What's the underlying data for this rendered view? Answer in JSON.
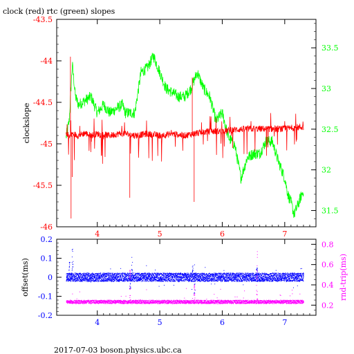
{
  "title": "clock (red) rtc (green) slopes",
  "footer": "2017-07-03 boson.physics.ubc.ca",
  "colors": {
    "clock": "#ff0000",
    "rtc": "#00ff00",
    "offset": "#0000ff",
    "rndtrip": "#ff00ff",
    "axis": "#000000"
  },
  "chart_data": [
    {
      "type": "line",
      "panel": "top",
      "ylabel": "clockslope",
      "xlim": [
        3.35,
        7.5
      ],
      "x_ticks": [
        "4",
        "5",
        "6",
        "7"
      ],
      "ylim_left": [
        -46.0,
        -43.5
      ],
      "y_ticks_left": [
        "-43.5",
        "-44",
        "-44.5",
        "-45",
        "-45.5",
        "-46"
      ],
      "ylim_right": [
        31.3,
        33.85
      ],
      "y_ticks_right": [
        "33.5",
        "33",
        "32.5",
        "32",
        "31.5"
      ],
      "grid": false,
      "series": [
        {
          "name": "clock",
          "axis": "left",
          "color": "#ff0000",
          "x": [
            3.5,
            3.55,
            3.6,
            3.7,
            3.8,
            3.9,
            4.0,
            4.2,
            4.4,
            4.6,
            4.8,
            5.0,
            5.2,
            5.4,
            5.6,
            5.8,
            6.0,
            6.2,
            6.4,
            6.6,
            6.8,
            7.0,
            7.2,
            7.3
          ],
          "y": [
            -44.9,
            -44.92,
            -44.88,
            -44.9,
            -44.87,
            -44.9,
            -44.88,
            -44.9,
            -44.87,
            -44.9,
            -44.88,
            -44.9,
            -44.88,
            -44.9,
            -44.87,
            -44.85,
            -44.85,
            -44.83,
            -44.82,
            -44.82,
            -44.82,
            -44.82,
            -44.8,
            -44.8
          ]
        },
        {
          "name": "rtc",
          "axis": "right",
          "color": "#00ff00",
          "x": [
            3.5,
            3.55,
            3.6,
            3.65,
            3.7,
            3.8,
            3.9,
            4.0,
            4.1,
            4.2,
            4.3,
            4.4,
            4.45,
            4.5,
            4.6,
            4.7,
            4.8,
            4.9,
            5.0,
            5.1,
            5.2,
            5.3,
            5.4,
            5.5,
            5.6,
            5.7,
            5.8,
            5.9,
            6.0,
            6.1,
            6.2,
            6.3,
            6.4,
            6.5,
            6.6,
            6.7,
            6.8,
            6.9,
            7.0,
            7.05,
            7.1,
            7.15,
            7.2,
            7.25,
            7.3
          ],
          "y": [
            32.4,
            32.6,
            33.3,
            32.9,
            32.8,
            32.85,
            32.9,
            32.7,
            32.8,
            32.7,
            32.75,
            32.8,
            32.7,
            32.7,
            32.7,
            33.2,
            33.25,
            33.4,
            33.2,
            33.0,
            32.95,
            32.9,
            32.9,
            33.0,
            33.2,
            33.0,
            32.9,
            32.6,
            32.7,
            32.4,
            32.3,
            31.9,
            32.15,
            32.2,
            32.2,
            32.35,
            32.35,
            32.1,
            31.9,
            31.7,
            31.6,
            31.45,
            31.55,
            31.65,
            31.75
          ]
        }
      ]
    },
    {
      "type": "scatter",
      "panel": "bottom",
      "ylabel": "offset(ms)",
      "ylabel_right": "rnd-trip(ms)",
      "xlim": [
        3.35,
        7.5
      ],
      "x_ticks": [
        "4",
        "5",
        "6",
        "7"
      ],
      "ylim_left": [
        -0.2,
        0.2
      ],
      "y_ticks_left": [
        "0.2",
        "0.1",
        "0",
        "-0.1",
        "-0.2"
      ],
      "ylim_right": [
        0.1,
        0.85
      ],
      "y_ticks_right": [
        "0.8",
        "0.6",
        "0.4",
        "0.2"
      ],
      "grid": false,
      "series": [
        {
          "name": "offset",
          "axis": "left",
          "color": "#0000ff",
          "x": [
            3.5,
            3.55,
            3.6,
            3.7,
            3.9,
            4.2,
            4.5,
            4.52,
            4.55,
            4.8,
            5.1,
            5.4,
            5.52,
            5.55,
            5.8,
            6.2,
            6.5,
            6.55,
            6.9,
            7.3
          ],
          "y": [
            0.0,
            0.08,
            0.15,
            0.0,
            0.0,
            0.0,
            0.0,
            -0.06,
            0.11,
            0.0,
            0.0,
            0.0,
            0.06,
            -0.09,
            0.0,
            0.0,
            0.0,
            0.05,
            0.0,
            0.0
          ]
        },
        {
          "name": "rnd-trip",
          "axis": "right",
          "color": "#ff00ff",
          "x": [
            3.5,
            3.6,
            3.8,
            4.0,
            4.3,
            4.5,
            4.52,
            4.8,
            5.1,
            5.4,
            5.55,
            5.8,
            6.2,
            6.5,
            6.55,
            6.9,
            7.3
          ],
          "y": [
            0.23,
            0.24,
            0.23,
            0.23,
            0.23,
            0.23,
            0.55,
            0.23,
            0.23,
            0.23,
            0.4,
            0.23,
            0.23,
            0.23,
            0.78,
            0.23,
            0.23
          ]
        }
      ]
    }
  ]
}
